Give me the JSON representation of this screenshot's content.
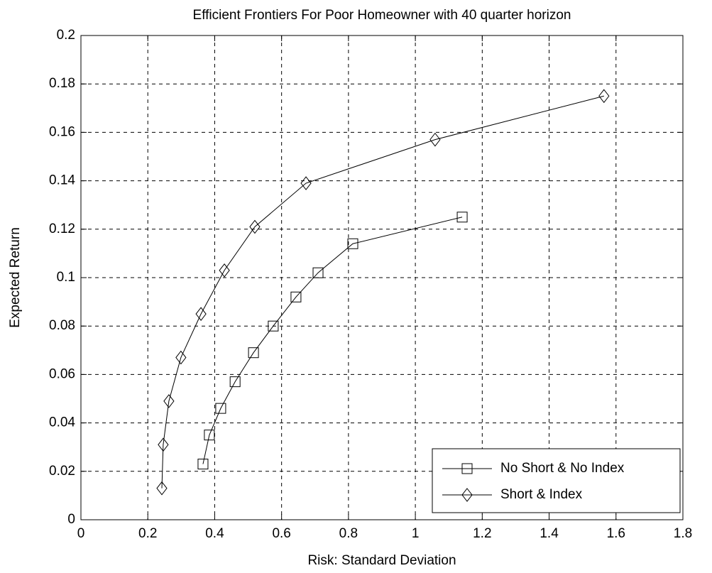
{
  "chart_data": {
    "type": "line",
    "title": "Efficient Frontiers For Poor Homeowner with 40 quarter horizon",
    "x_label": "Risk: Standard Deviation",
    "y_label": "Expected Return",
    "xlim": [
      0,
      1.8
    ],
    "xticks": [
      0,
      0.2,
      0.4,
      0.6,
      0.8,
      1,
      1.2,
      1.4,
      1.6,
      1.8
    ],
    "ylim": [
      0,
      0.2
    ],
    "yticks": [
      0,
      0.02,
      0.04,
      0.06,
      0.08,
      0.1,
      0.12,
      0.14,
      0.16,
      0.18,
      0.2
    ],
    "grid": true,
    "legend": "lower right",
    "series": [
      {
        "name": "No Short & No Index",
        "color": "#000000",
        "marker": "square",
        "x": [
          0.365,
          0.384,
          0.418,
          0.461,
          0.516,
          0.575,
          0.643,
          0.709,
          0.813,
          1.14
        ],
        "values": [
          0.023,
          0.035,
          0.046,
          0.057,
          0.069,
          0.08,
          0.092,
          0.102,
          0.114,
          0.125
        ]
      },
      {
        "name": "Short & Index",
        "color": "#000000",
        "marker": "diamond",
        "x": [
          0.242,
          0.246,
          0.263,
          0.299,
          0.359,
          0.429,
          0.52,
          0.673,
          1.059,
          1.564
        ],
        "values": [
          0.013,
          0.031,
          0.049,
          0.067,
          0.085,
          0.103,
          0.121,
          0.139,
          0.157,
          0.175
        ]
      }
    ]
  }
}
